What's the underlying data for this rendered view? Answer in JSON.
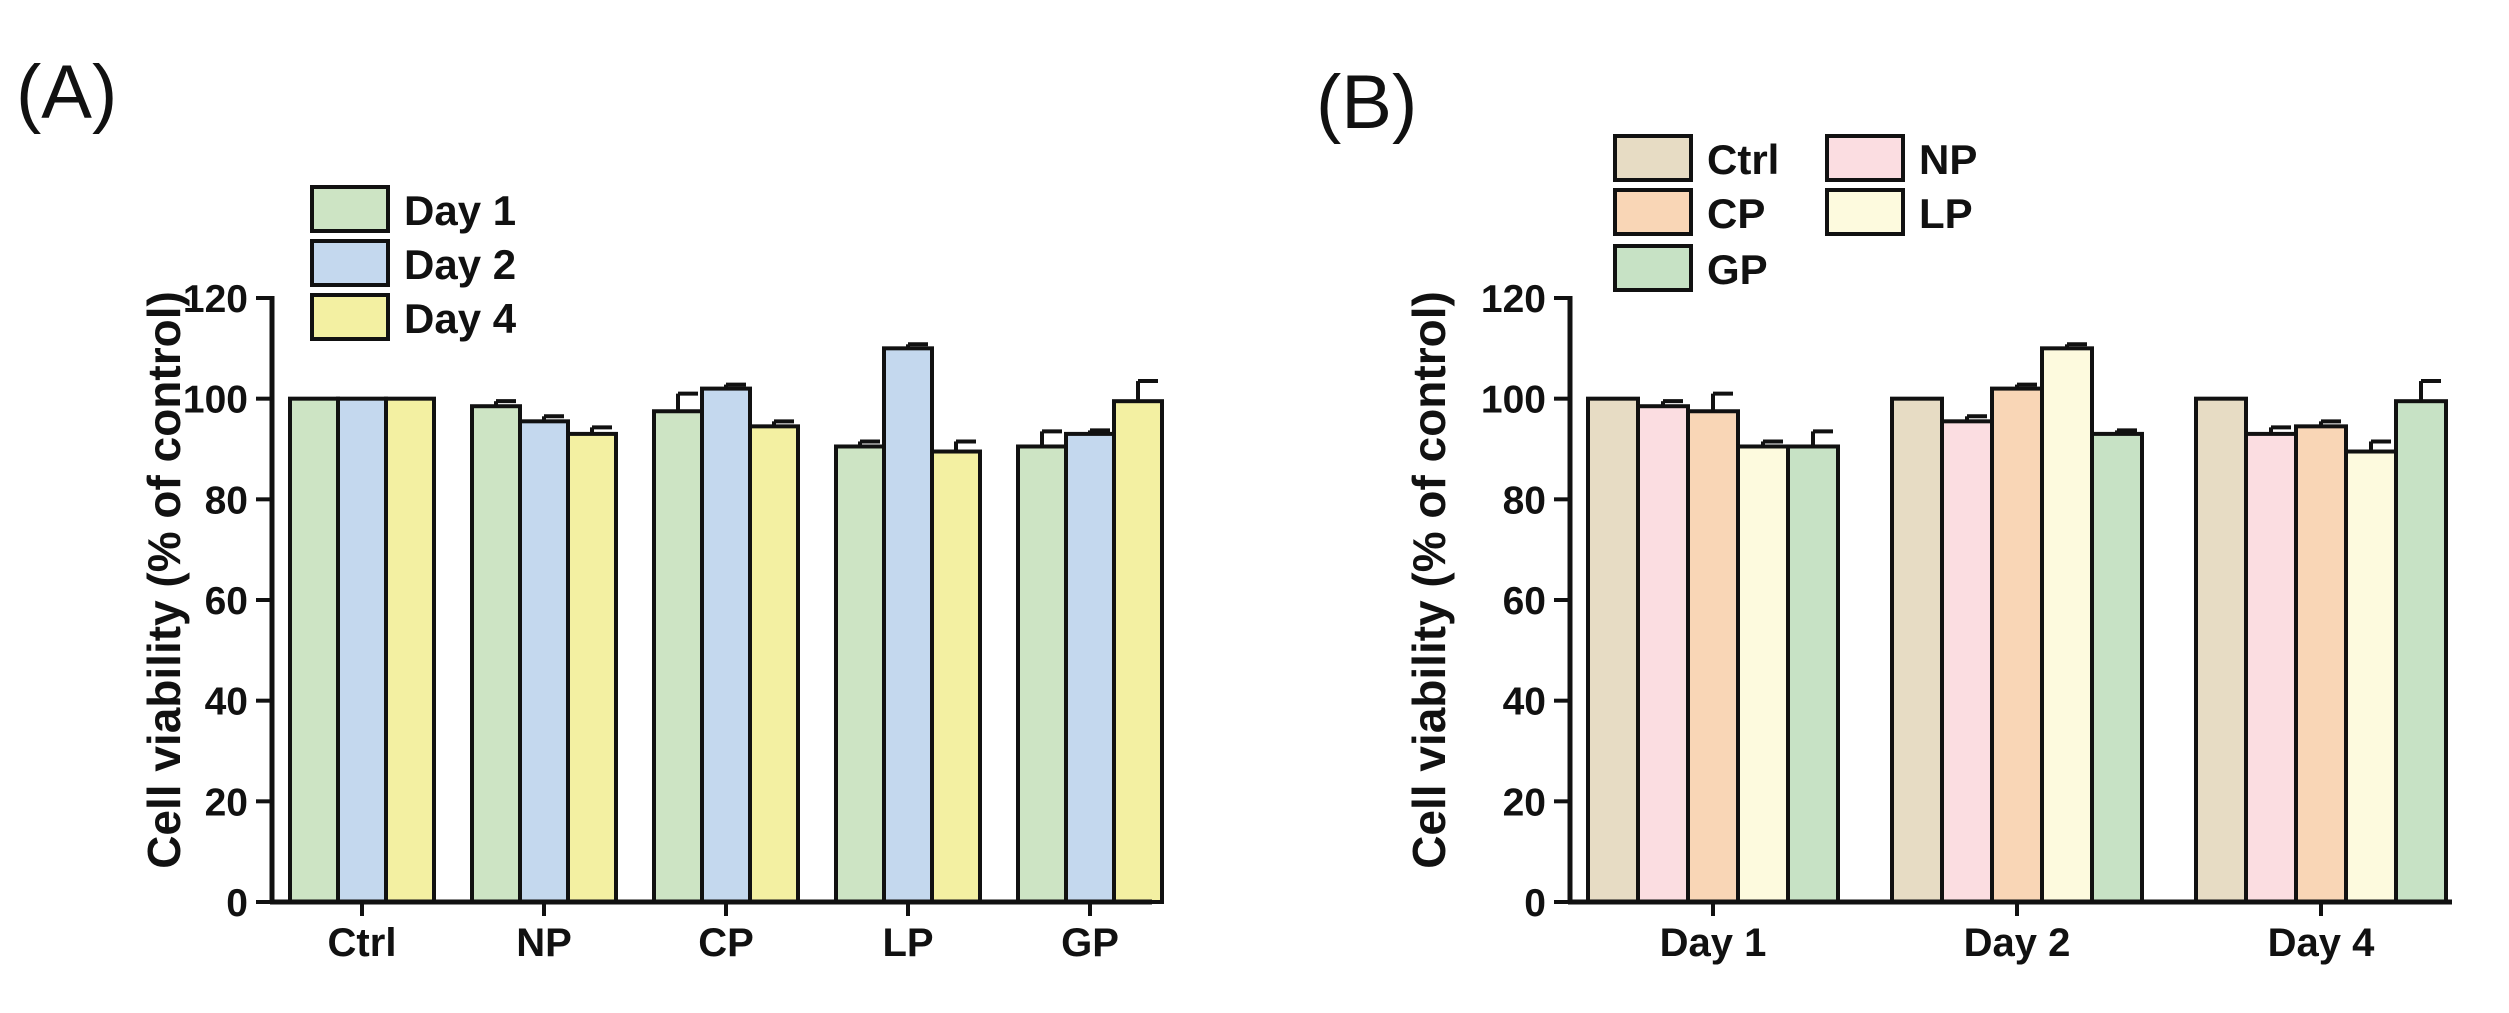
{
  "colors": {
    "Day 1": "#cde4c4",
    "Day 2": "#c4d8ee",
    "Day 4": "#f3f0a2",
    "Ctrl": "#e7dcc4",
    "NP": "#fbdde1",
    "CP": "#f9d6b6",
    "LP": "#fdfade",
    "GP": "#c7e2c5",
    "stroke": "#111111"
  },
  "chart_data": [
    {
      "panel": "(A)",
      "type": "bar",
      "ylabel": "Cell viability (% of control)",
      "xlabel": "",
      "ylim": [
        0,
        120
      ],
      "yticks": [
        0,
        20,
        40,
        60,
        80,
        100,
        120
      ],
      "categories": [
        "Ctrl",
        "NP",
        "CP",
        "LP",
        "GP"
      ],
      "legend_position": "top-left",
      "series": [
        {
          "name": "Day 1",
          "values": [
            100,
            98.5,
            97.5,
            90.5,
            90.5
          ],
          "errors": [
            0,
            1,
            3.5,
            1,
            3
          ]
        },
        {
          "name": "Day 2",
          "values": [
            100,
            95.5,
            102,
            110,
            93
          ],
          "errors": [
            0,
            1,
            0.8,
            0.8,
            0.7
          ]
        },
        {
          "name": "Day 4",
          "values": [
            100,
            93,
            94.5,
            89.5,
            99.5
          ],
          "errors": [
            0,
            1.3,
            1,
            2,
            4
          ]
        }
      ]
    },
    {
      "panel": "(B)",
      "type": "bar",
      "ylabel": "Cell viability (% of control)",
      "xlabel": "",
      "ylim": [
        0,
        120
      ],
      "yticks": [
        0,
        20,
        40,
        60,
        80,
        100,
        120
      ],
      "categories": [
        "Day 1",
        "Day 2",
        "Day 4"
      ],
      "legend_position": "top-left",
      "series": [
        {
          "name": "Ctrl",
          "values": [
            100,
            100,
            100
          ],
          "errors": [
            0,
            0,
            0
          ]
        },
        {
          "name": "NP",
          "values": [
            98.5,
            95.5,
            93
          ],
          "errors": [
            1,
            1,
            1.3
          ]
        },
        {
          "name": "CP",
          "values": [
            97.5,
            102,
            94.5
          ],
          "errors": [
            3.5,
            0.8,
            1
          ]
        },
        {
          "name": "LP",
          "values": [
            90.5,
            110,
            89.5
          ],
          "errors": [
            1,
            0.8,
            2
          ]
        },
        {
          "name": "GP",
          "values": [
            90.5,
            93,
            99.5
          ],
          "errors": [
            3,
            0.7,
            4
          ]
        }
      ]
    }
  ]
}
